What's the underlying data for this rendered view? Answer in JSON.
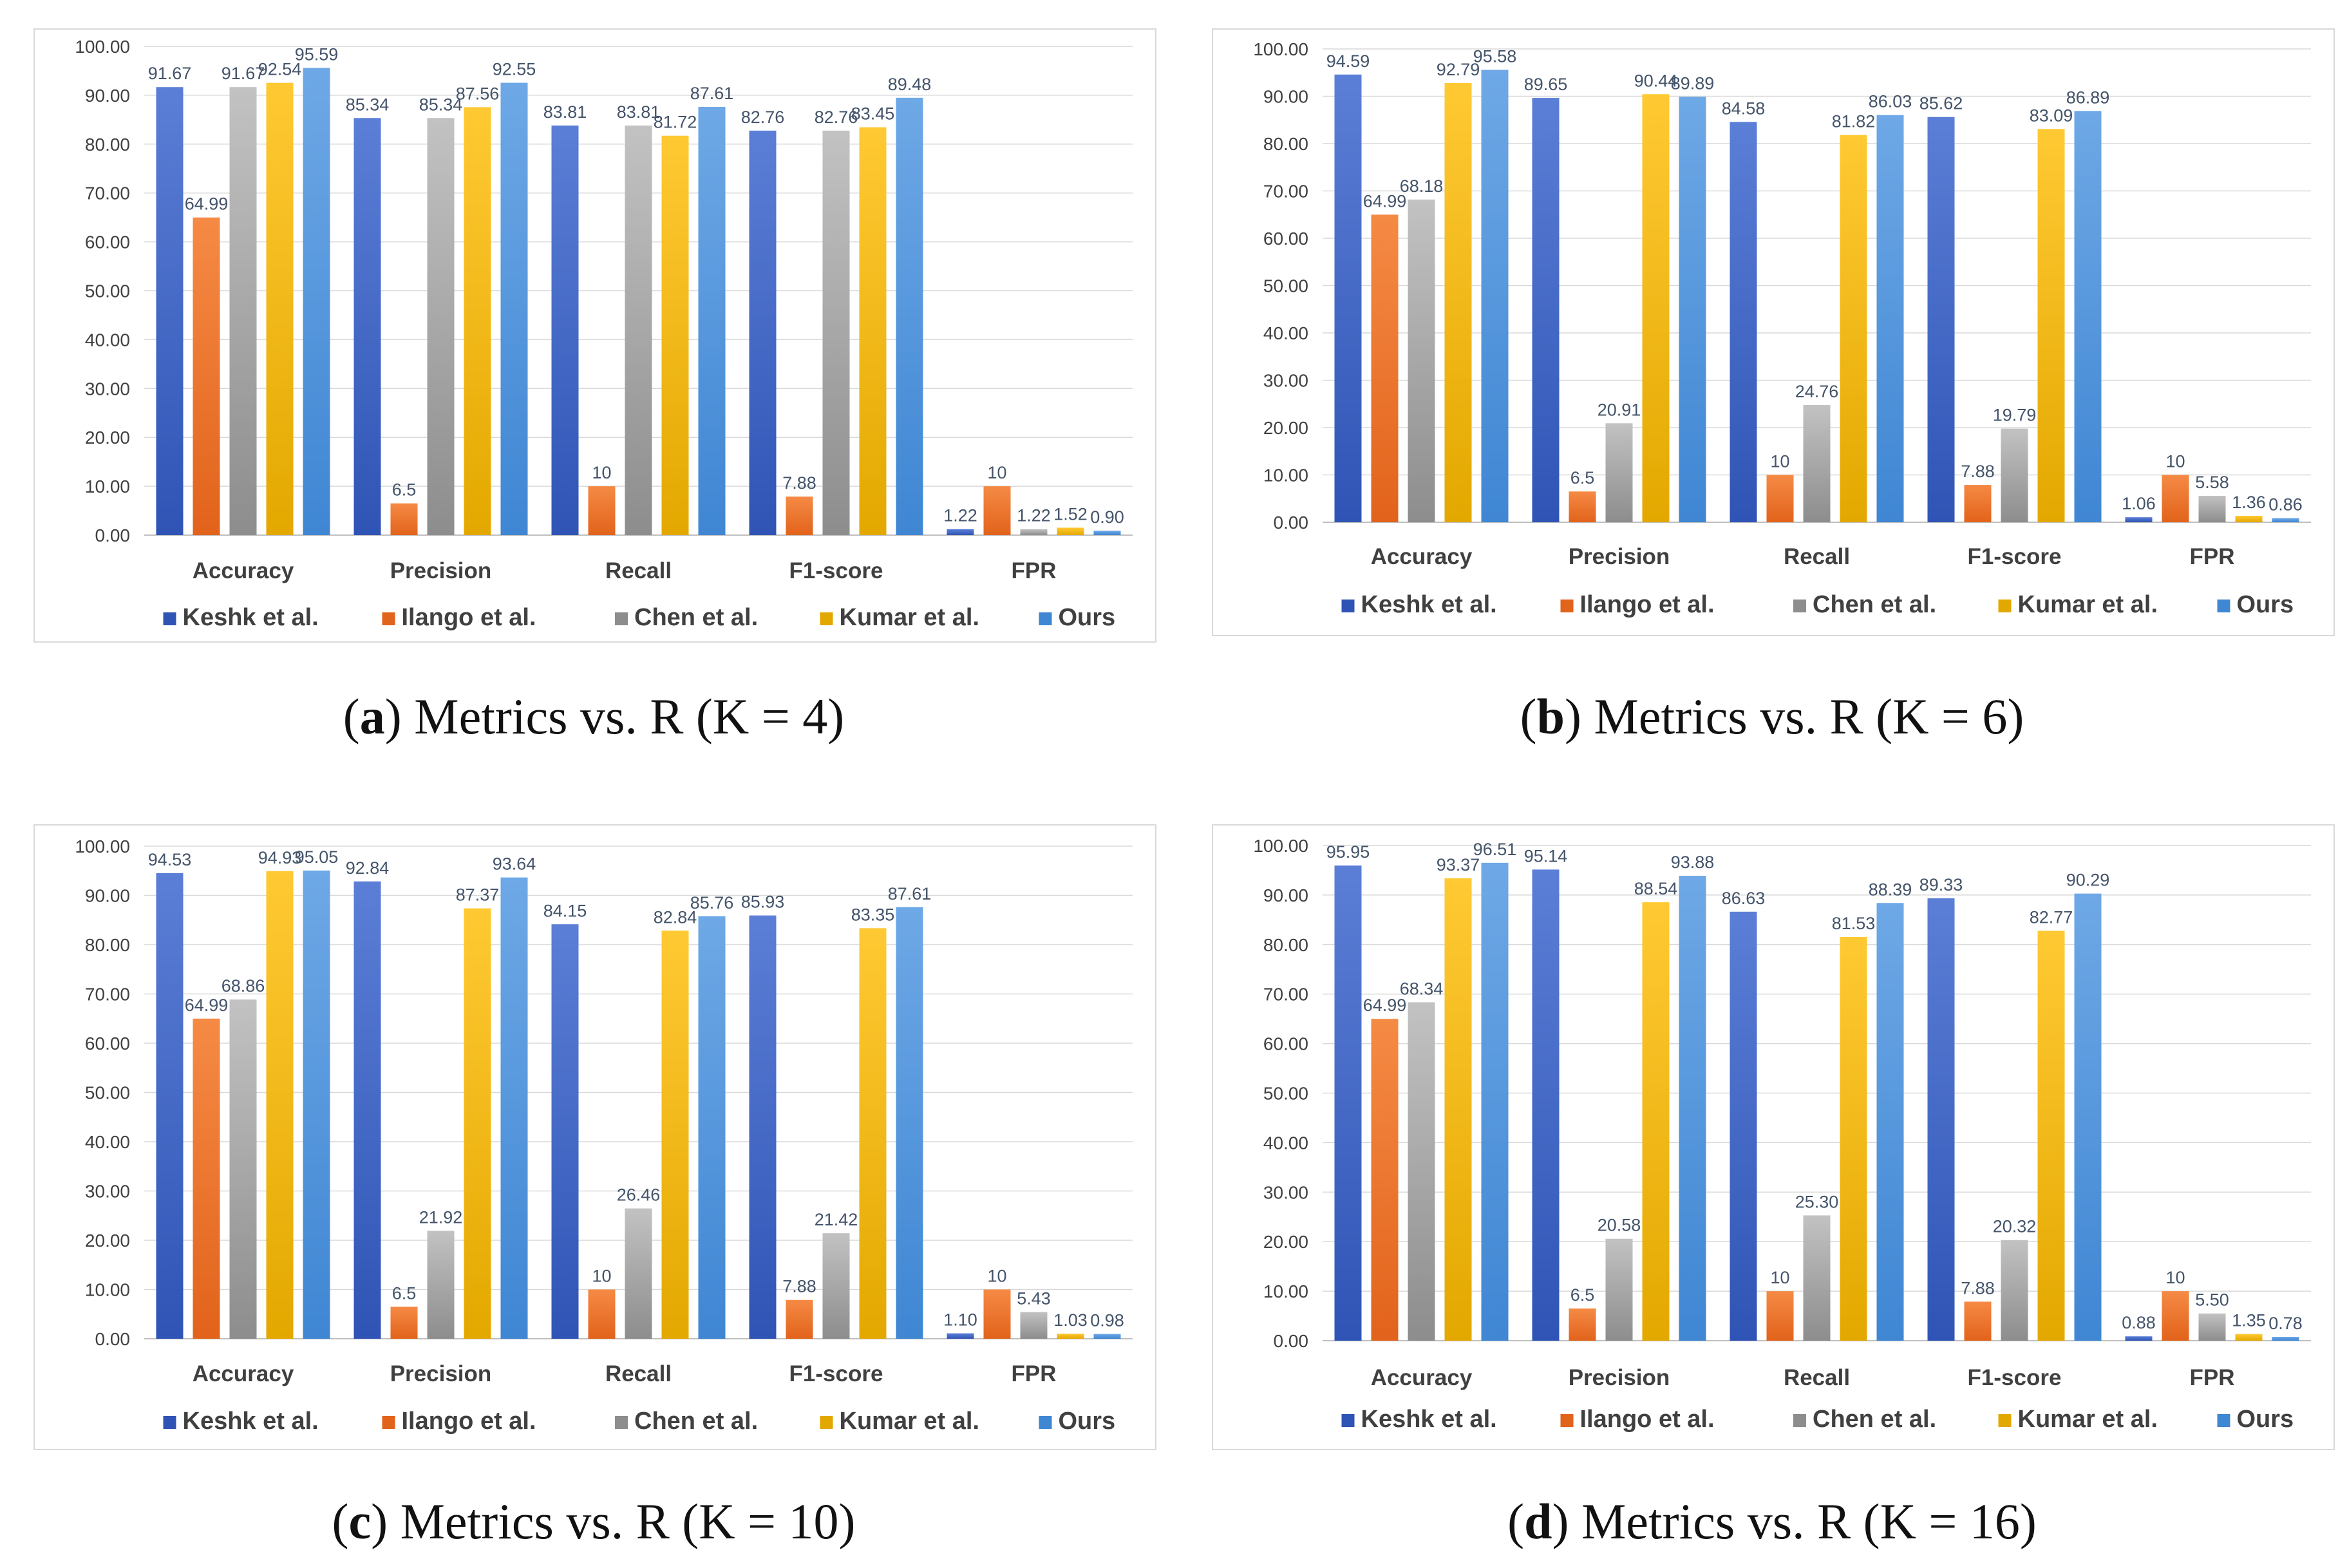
{
  "series_names": [
    "Keshk et al.",
    "Ilango et al.",
    "Chen et al.",
    "Kumar et al.",
    "Ours"
  ],
  "series_colors": [
    {
      "top": "#5b7fd6",
      "bottom": "#2f54b5"
    },
    {
      "top": "#f58a45",
      "bottom": "#e2631b"
    },
    {
      "top": "#c2c2c2",
      "bottom": "#8d8d8d"
    },
    {
      "top": "#ffc933",
      "bottom": "#e3a800"
    },
    {
      "top": "#6ea8e6",
      "bottom": "#3f86d3"
    }
  ],
  "chart_data": [
    {
      "type": "bar",
      "panel_label": "a",
      "caption": "Metrics vs. R (K = 4)",
      "categories": [
        "Accuracy",
        "Precision",
        "Recall",
        "F1-score",
        "FPR"
      ],
      "ylim": [
        0,
        100
      ],
      "yticks": [
        "0.00",
        "10.00",
        "20.00",
        "30.00",
        "40.00",
        "50.00",
        "60.00",
        "70.00",
        "80.00",
        "90.00",
        "100.00"
      ],
      "series": [
        {
          "name": "Keshk et al.",
          "values": [
            91.67,
            85.34,
            83.81,
            82.76,
            1.22
          ],
          "labels": [
            "91.67",
            "85.34",
            "83.81",
            "82.76",
            "1.22"
          ]
        },
        {
          "name": "Ilango et al.",
          "values": [
            64.99,
            6.5,
            10,
            7.88,
            10
          ],
          "labels": [
            "64.99",
            "6.5",
            "10",
            "7.88",
            "10"
          ]
        },
        {
          "name": "Chen et al.",
          "values": [
            91.67,
            85.34,
            83.81,
            82.76,
            1.22
          ],
          "labels": [
            "91.67",
            "85.34",
            "83.81",
            "82.76",
            "1.22"
          ]
        },
        {
          "name": "Kumar et al.",
          "values": [
            92.54,
            87.56,
            81.72,
            83.45,
            1.52
          ],
          "labels": [
            "92.54",
            "87.56",
            "81.72",
            "83.45",
            "1.52"
          ]
        },
        {
          "name": "Ours",
          "values": [
            95.59,
            92.55,
            87.61,
            89.48,
            0.9
          ],
          "labels": [
            "95.59",
            "92.55",
            "87.61",
            "89.48",
            "0.90"
          ]
        }
      ],
      "legend": "bottom"
    },
    {
      "type": "bar",
      "panel_label": "b",
      "caption": "Metrics vs. R (K = 6)",
      "categories": [
        "Accuracy",
        "Precision",
        "Recall",
        "F1-score",
        "FPR"
      ],
      "ylim": [
        0,
        100
      ],
      "yticks": [
        "0.00",
        "10.00",
        "20.00",
        "30.00",
        "40.00",
        "50.00",
        "60.00",
        "70.00",
        "80.00",
        "90.00",
        "100.00"
      ],
      "series": [
        {
          "name": "Keshk et al.",
          "values": [
            94.59,
            89.65,
            84.58,
            85.62,
            1.06
          ],
          "labels": [
            "94.59",
            "89.65",
            "84.58",
            "85.62",
            "1.06"
          ]
        },
        {
          "name": "Ilango et al.",
          "values": [
            64.99,
            6.5,
            10,
            7.88,
            10
          ],
          "labels": [
            "64.99",
            "6.5",
            "10",
            "7.88",
            "10"
          ]
        },
        {
          "name": "Chen et al.",
          "values": [
            68.18,
            20.91,
            24.76,
            19.79,
            5.58
          ],
          "labels": [
            "68.18",
            "20.91",
            "24.76",
            "19.79",
            "5.58"
          ]
        },
        {
          "name": "Kumar et al.",
          "values": [
            92.79,
            90.44,
            81.82,
            83.09,
            1.36
          ],
          "labels": [
            "92.79",
            "90.44",
            "81.82",
            "83.09",
            "1.36"
          ]
        },
        {
          "name": "Ours",
          "values": [
            95.58,
            89.89,
            86.03,
            86.89,
            0.86
          ],
          "labels": [
            "95.58",
            "89.89",
            "86.03",
            "86.89",
            "0.86"
          ]
        }
      ],
      "legend": "bottom"
    },
    {
      "type": "bar",
      "panel_label": "c",
      "caption": "Metrics vs. R (K = 10)",
      "categories": [
        "Accuracy",
        "Precision",
        "Recall",
        "F1-score",
        "FPR"
      ],
      "ylim": [
        0,
        100
      ],
      "yticks": [
        "0.00",
        "10.00",
        "20.00",
        "30.00",
        "40.00",
        "50.00",
        "60.00",
        "70.00",
        "80.00",
        "90.00",
        "100.00"
      ],
      "series": [
        {
          "name": "Keshk et al.",
          "values": [
            94.53,
            92.84,
            84.15,
            85.93,
            1.1
          ],
          "labels": [
            "94.53",
            "92.84",
            "84.15",
            "85.93",
            "1.10"
          ]
        },
        {
          "name": "Ilango et al.",
          "values": [
            64.99,
            6.5,
            10,
            7.88,
            10
          ],
          "labels": [
            "64.99",
            "6.5",
            "10",
            "7.88",
            "10"
          ]
        },
        {
          "name": "Chen et al.",
          "values": [
            68.86,
            21.92,
            26.46,
            21.42,
            5.43
          ],
          "labels": [
            "68.86",
            "21.92",
            "26.46",
            "21.42",
            "5.43"
          ]
        },
        {
          "name": "Kumar et al.",
          "values": [
            94.93,
            87.37,
            82.84,
            83.35,
            1.03
          ],
          "labels": [
            "94.93",
            "87.37",
            "82.84",
            "83.35",
            "1.03"
          ]
        },
        {
          "name": "Ours",
          "values": [
            95.05,
            93.64,
            85.76,
            87.61,
            0.98
          ],
          "labels": [
            "95.05",
            "93.64",
            "85.76",
            "87.61",
            "0.98"
          ]
        }
      ],
      "legend": "bottom"
    },
    {
      "type": "bar",
      "panel_label": "d",
      "caption": "Metrics vs. R (K = 16)",
      "categories": [
        "Accuracy",
        "Precision",
        "Recall",
        "F1-score",
        "FPR"
      ],
      "ylim": [
        0,
        100
      ],
      "yticks": [
        "0.00",
        "10.00",
        "20.00",
        "30.00",
        "40.00",
        "50.00",
        "60.00",
        "70.00",
        "80.00",
        "90.00",
        "100.00"
      ],
      "series": [
        {
          "name": "Keshk et al.",
          "values": [
            95.95,
            95.14,
            86.63,
            89.33,
            0.88
          ],
          "labels": [
            "95.95",
            "95.14",
            "86.63",
            "89.33",
            "0.88"
          ]
        },
        {
          "name": "Ilango et al.",
          "values": [
            64.99,
            6.5,
            10,
            7.88,
            10
          ],
          "labels": [
            "64.99",
            "6.5",
            "10",
            "7.88",
            "10"
          ]
        },
        {
          "name": "Chen et al.",
          "values": [
            68.34,
            20.58,
            25.3,
            20.32,
            5.5
          ],
          "labels": [
            "68.34",
            "20.58",
            "25.30",
            "20.32",
            "5.50"
          ]
        },
        {
          "name": "Kumar et al.",
          "values": [
            93.37,
            88.54,
            81.53,
            82.77,
            1.35
          ],
          "labels": [
            "93.37",
            "88.54",
            "81.53",
            "82.77",
            "1.35"
          ]
        },
        {
          "name": "Ours",
          "values": [
            96.51,
            93.88,
            88.39,
            90.29,
            0.78
          ],
          "labels": [
            "96.51",
            "93.88",
            "88.39",
            "90.29",
            "0.78"
          ]
        }
      ],
      "legend": "bottom"
    }
  ]
}
